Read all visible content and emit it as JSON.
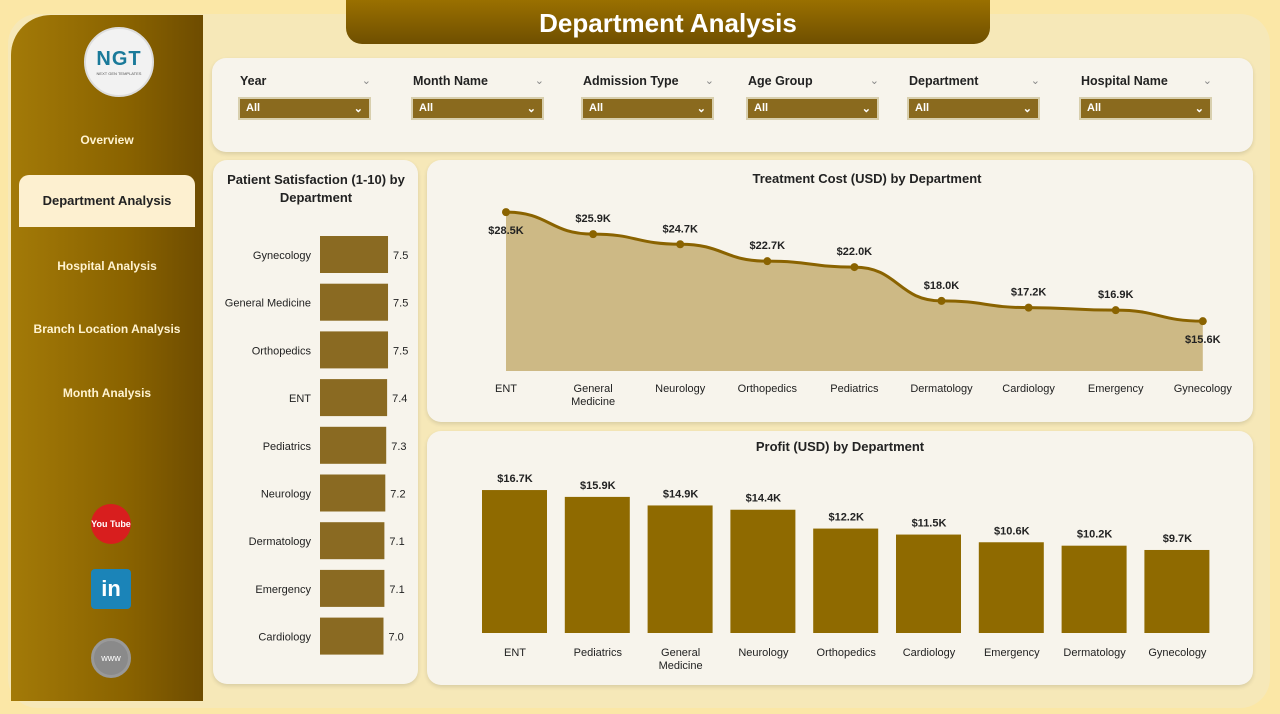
{
  "title": "Department Analysis",
  "logo": {
    "text": "NGT",
    "subtitle": "NEXT GEN TEMPLATES"
  },
  "nav": [
    {
      "label": "Overview"
    },
    {
      "label": "Department Analysis",
      "active": true
    },
    {
      "label": "Hospital Analysis"
    },
    {
      "label": "Branch Location Analysis"
    },
    {
      "label": "Month Analysis"
    }
  ],
  "social": {
    "youtube": "You Tube",
    "linkedin": "in",
    "website": "www"
  },
  "filters": [
    {
      "label": "Year",
      "value": "All"
    },
    {
      "label": "Month Name",
      "value": "All"
    },
    {
      "label": "Admission Type",
      "value": "All"
    },
    {
      "label": "Age Group",
      "value": "All"
    },
    {
      "label": "Department",
      "value": "All"
    },
    {
      "label": "Hospital Name",
      "value": "All"
    }
  ],
  "colors": {
    "accent": "#8a6a1e",
    "line": "#8a6300",
    "area": "#cdb985",
    "bar": "#8f6a00"
  },
  "chart_data": [
    {
      "type": "bar",
      "orientation": "horizontal",
      "title": "Patient Satisfaction (1-10) by Department",
      "categories": [
        "Gynecology",
        "General Medicine",
        "Orthopedics",
        "ENT",
        "Pediatrics",
        "Neurology",
        "Dermatology",
        "Emergency",
        "Cardiology"
      ],
      "values": [
        7.5,
        7.5,
        7.5,
        7.4,
        7.3,
        7.2,
        7.1,
        7.1,
        7.0
      ],
      "labels": [
        "7.5",
        "7.5",
        "7.5",
        "7.4",
        "7.3",
        "7.2",
        "7.1",
        "7.1",
        "7.0"
      ]
    },
    {
      "type": "area",
      "title": "Treatment Cost (USD) by Department",
      "categories": [
        "ENT",
        "General Medicine",
        "Neurology",
        "Orthopedics",
        "Pediatrics",
        "Dermatology",
        "Cardiology",
        "Emergency",
        "Gynecology"
      ],
      "values": [
        28500,
        25900,
        24700,
        22700,
        22000,
        18000,
        17200,
        16900,
        15600
      ],
      "labels": [
        "$28.5K",
        "$25.9K",
        "$24.7K",
        "$22.7K",
        "$22.0K",
        "$18.0K",
        "$17.2K",
        "$16.9K",
        "$15.6K"
      ]
    },
    {
      "type": "bar",
      "title": "Profit (USD) by Department",
      "categories": [
        "ENT",
        "Pediatrics",
        "General Medicine",
        "Neurology",
        "Orthopedics",
        "Cardiology",
        "Emergency",
        "Dermatology",
        "Gynecology"
      ],
      "values": [
        16700,
        15900,
        14900,
        14400,
        12200,
        11500,
        10600,
        10200,
        9700
      ],
      "labels": [
        "$16.7K",
        "$15.9K",
        "$14.9K",
        "$14.4K",
        "$12.2K",
        "$11.5K",
        "$10.6K",
        "$10.2K",
        "$9.7K"
      ]
    }
  ]
}
